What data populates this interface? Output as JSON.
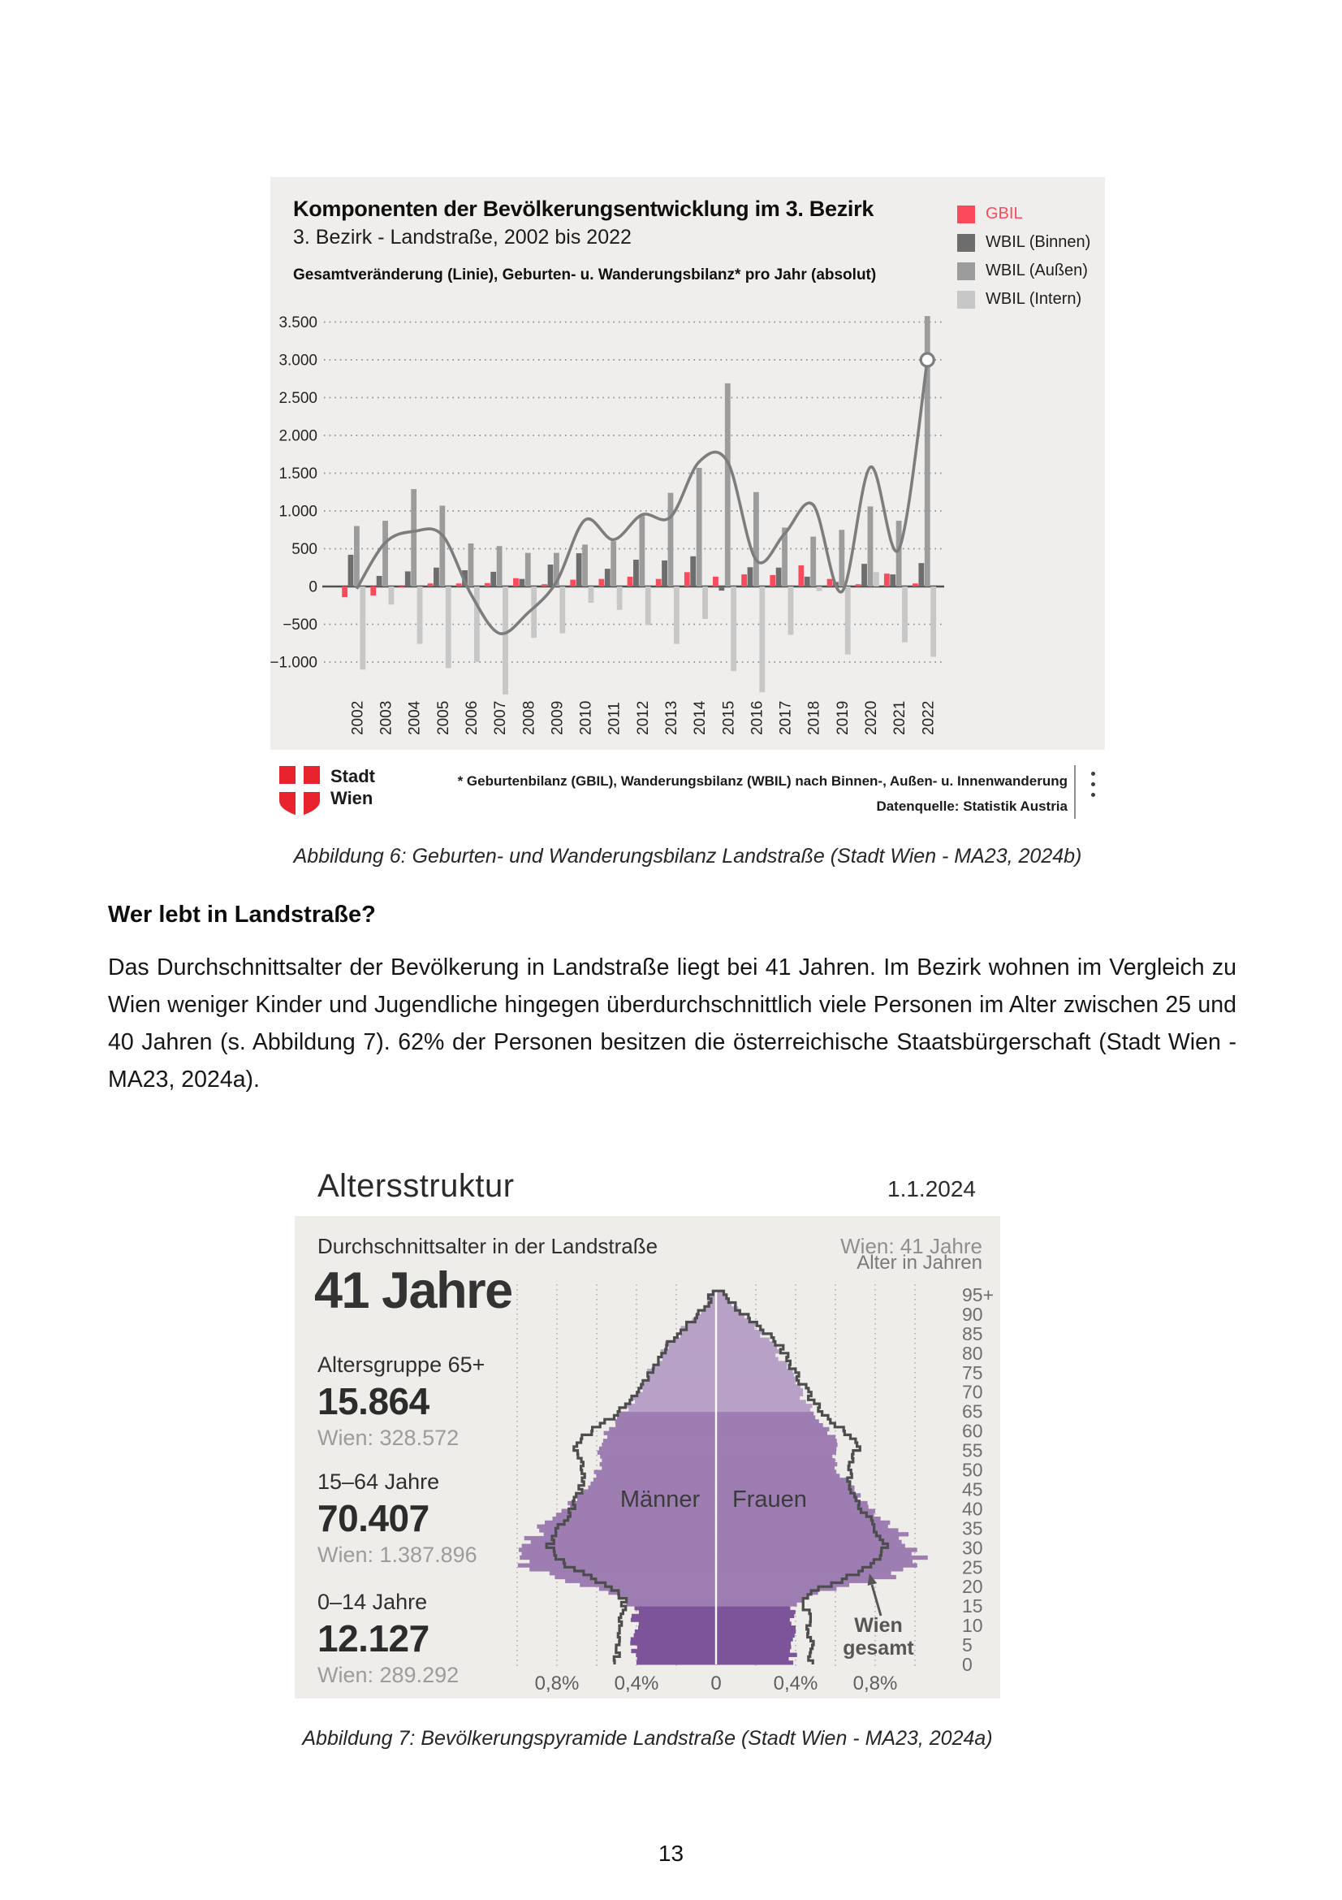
{
  "page_number": "13",
  "figure6": {
    "title": "Komponenten der Bevölkerungsentwicklung im 3. Bezirk",
    "subtitle": "3. Bezirk - Landstraße, 2002 bis 2022",
    "axis_note": "Gesamtveränderung (Linie), Geburten- u. Wanderungsbilanz* pro Jahr (absolut)",
    "legend": [
      {
        "label": "GBIL",
        "color": "#fb4a5c",
        "label_color": "#fb4a5c"
      },
      {
        "label": "WBIL (Binnen)",
        "color": "#6d6d6d",
        "label_color": "#1d1d1d"
      },
      {
        "label": "WBIL (Außen)",
        "color": "#9c9c9c",
        "label_color": "#1d1d1d"
      },
      {
        "label": "WBIL (Intern)",
        "color": "#c7c7c7",
        "label_color": "#1d1d1d"
      }
    ],
    "footnote_line1": "* Geburtenbilanz (GBIL), Wanderungsbilanz (WBIL) nach Binnen-, Außen- u. Innenwanderung",
    "footnote_line2": "Datenquelle: Statistik Austria",
    "logo_line1": "Stadt",
    "logo_line2": "Wien",
    "caption": "Abbildung 6: Geburten- und Wanderungsbilanz Landstraße (Stadt Wien - MA23, 2024b)"
  },
  "section": {
    "heading": "Wer lebt in Landstraße?",
    "paragraph": "Das Durchschnittsalter der Bevölkerung in Landstraße liegt bei 41 Jahren. Im Bezirk wohnen im Vergleich zu Wien weniger Kinder und Jugendliche hingegen überdurchschnittlich viele Personen im Alter zwischen 25 und 40 Jahren (s. Abbildung 7). 62% der Personen besitzen die österreichische Staatsbürgerschaft (Stadt Wien - MA23, 2024a)."
  },
  "figure7": {
    "title": "Altersstruktur",
    "date": "1.1.2024",
    "panel_label": "Durchschnittsalter in der Landstraße",
    "wien_average": "Wien: 41 Jahre",
    "big_value": "41 Jahre",
    "age_axis_label": "Alter in Jahren",
    "stats": [
      {
        "label": "Altersgruppe 65+",
        "value": "15.864",
        "wien": "Wien: 328.572"
      },
      {
        "label": "15–64 Jahre",
        "value": "70.407",
        "wien": "Wien: 1.387.896"
      },
      {
        "label": "0–14 Jahre",
        "value": "12.127",
        "wien": "Wien: 289.292"
      }
    ],
    "men_label": "Männer",
    "women_label": "Frauen",
    "wien_gesamt_line1": "Wien",
    "wien_gesamt_line2": "gesamt",
    "caption": "Abbildung 7: Bevölkerungspyramide Landstraße (Stadt Wien - MA23, 2024a)",
    "colors": {
      "band_0_14": "#7d5499",
      "band_15_64": "#9d7db2",
      "band_65plus": "#b8a1c7",
      "wien_outline": "#4d4d4d",
      "panel_bg": "#efedea"
    }
  },
  "chart_data": [
    {
      "type": "bar",
      "title": "Komponenten der Bevölkerungsentwicklung im 3. Bezirk",
      "ylabel": "Gesamtveränderung (Linie), Geburten- u. Wanderungsbilanz* pro Jahr (absolut)",
      "categories": [
        2002,
        2003,
        2004,
        2005,
        2006,
        2007,
        2008,
        2009,
        2010,
        2011,
        2012,
        2013,
        2014,
        2015,
        2016,
        2017,
        2018,
        2019,
        2020,
        2021,
        2022
      ],
      "series": [
        {
          "name": "GBIL",
          "color": "#fb4a5c",
          "values": [
            -140,
            -120,
            -15,
            40,
            40,
            45,
            110,
            30,
            90,
            100,
            130,
            100,
            190,
            130,
            160,
            150,
            280,
            100,
            30,
            170,
            40
          ]
        },
        {
          "name": "WBIL (Binnen)",
          "color": "#6d6d6d",
          "values": [
            420,
            140,
            200,
            250,
            215,
            195,
            100,
            290,
            440,
            235,
            355,
            345,
            400,
            -55,
            255,
            250,
            130,
            60,
            300,
            160,
            310
          ]
        },
        {
          "name": "WBIL (Außen)",
          "color": "#9c9c9c",
          "values": [
            800,
            870,
            1290,
            1070,
            570,
            535,
            445,
            445,
            555,
            600,
            950,
            1240,
            1570,
            2690,
            1250,
            780,
            660,
            750,
            1060,
            870,
            3580
          ]
        },
        {
          "name": "WBIL (Intern)",
          "color": "#c7c7c7",
          "values": [
            -1100,
            -240,
            -760,
            -1080,
            -1000,
            -1430,
            -680,
            -620,
            -215,
            -310,
            -510,
            -760,
            -430,
            -1120,
            -1400,
            -640,
            -60,
            -900,
            190,
            -740,
            -930
          ]
        }
      ],
      "line_series": {
        "name": "Gesamtveränderung",
        "color": "#7d7d7d",
        "values": [
          -30,
          580,
          730,
          680,
          -100,
          -620,
          -350,
          60,
          880,
          620,
          950,
          920,
          1650,
          1650,
          350,
          700,
          1080,
          -70,
          1580,
          490,
          3000
        ]
      },
      "ylim": [
        -1000,
        3600
      ],
      "yticks": [
        3500,
        3000,
        2500,
        2000,
        1500,
        1000,
        500,
        0,
        -500,
        -1000
      ],
      "grid": "dotted-horizontal",
      "legend_position": "right-top",
      "values_estimated": true
    },
    {
      "type": "pyramid",
      "title": "Altersstruktur",
      "unit": "percent of population per 1-year age group",
      "x_ticks": [
        "0,8%",
        "0,4%",
        "0",
        "0,4%",
        "0,8%"
      ],
      "x_gridline_step_pct": 0.2,
      "age_ticks": [
        "0",
        "5",
        "10",
        "15",
        "20",
        "25",
        "30",
        "35",
        "40",
        "45",
        "50",
        "55",
        "60",
        "65",
        "70",
        "75",
        "80",
        "85",
        "90",
        "95+"
      ],
      "district_men_profile": [
        [
          0,
          0.4
        ],
        [
          5,
          0.41
        ],
        [
          10,
          0.41
        ],
        [
          14,
          0.41
        ],
        [
          16,
          0.45
        ],
        [
          18,
          0.54
        ],
        [
          20,
          0.68
        ],
        [
          22,
          0.84
        ],
        [
          25,
          0.97
        ],
        [
          28,
          1.0
        ],
        [
          30,
          0.98
        ],
        [
          33,
          0.91
        ],
        [
          36,
          0.83
        ],
        [
          40,
          0.75
        ],
        [
          44,
          0.68
        ],
        [
          48,
          0.61
        ],
        [
          52,
          0.58
        ],
        [
          56,
          0.58
        ],
        [
          60,
          0.54
        ],
        [
          63,
          0.48
        ],
        [
          65,
          0.45
        ],
        [
          68,
          0.41
        ],
        [
          71,
          0.38
        ],
        [
          74,
          0.34
        ],
        [
          77,
          0.3
        ],
        [
          80,
          0.27
        ],
        [
          83,
          0.22
        ],
        [
          86,
          0.16
        ],
        [
          89,
          0.1
        ],
        [
          92,
          0.05
        ],
        [
          95,
          0.02
        ]
      ],
      "district_women_profile": [
        [
          0,
          0.385
        ],
        [
          5,
          0.39
        ],
        [
          10,
          0.39
        ],
        [
          14,
          0.39
        ],
        [
          16,
          0.43
        ],
        [
          18,
          0.52
        ],
        [
          20,
          0.68
        ],
        [
          22,
          0.87
        ],
        [
          25,
          1.0
        ],
        [
          28,
          1.03
        ],
        [
          30,
          1.0
        ],
        [
          33,
          0.93
        ],
        [
          36,
          0.85
        ],
        [
          40,
          0.76
        ],
        [
          44,
          0.69
        ],
        [
          48,
          0.63
        ],
        [
          52,
          0.6
        ],
        [
          56,
          0.6
        ],
        [
          60,
          0.56
        ],
        [
          63,
          0.51
        ],
        [
          65,
          0.48
        ],
        [
          68,
          0.44
        ],
        [
          71,
          0.41
        ],
        [
          74,
          0.38
        ],
        [
          77,
          0.34
        ],
        [
          80,
          0.31
        ],
        [
          83,
          0.26
        ],
        [
          86,
          0.21
        ],
        [
          89,
          0.15
        ],
        [
          92,
          0.08
        ],
        [
          95,
          0.04
        ]
      ],
      "wien_men_profile": [
        [
          0,
          0.5
        ],
        [
          5,
          0.5
        ],
        [
          10,
          0.49
        ],
        [
          14,
          0.47
        ],
        [
          16,
          0.46
        ],
        [
          18,
          0.49
        ],
        [
          20,
          0.56
        ],
        [
          22,
          0.64
        ],
        [
          25,
          0.75
        ],
        [
          28,
          0.82
        ],
        [
          30,
          0.84
        ],
        [
          33,
          0.81
        ],
        [
          36,
          0.77
        ],
        [
          40,
          0.72
        ],
        [
          44,
          0.68
        ],
        [
          48,
          0.66
        ],
        [
          52,
          0.68
        ],
        [
          55,
          0.7
        ],
        [
          58,
          0.66
        ],
        [
          61,
          0.58
        ],
        [
          64,
          0.5
        ],
        [
          67,
          0.44
        ],
        [
          70,
          0.39
        ],
        [
          73,
          0.35
        ],
        [
          76,
          0.31
        ],
        [
          79,
          0.28
        ],
        [
          82,
          0.24
        ],
        [
          85,
          0.18
        ],
        [
          88,
          0.12
        ],
        [
          91,
          0.06
        ],
        [
          94,
          0.03
        ],
        [
          95,
          0.02
        ]
      ],
      "wien_women_profile": [
        [
          0,
          0.48
        ],
        [
          5,
          0.48
        ],
        [
          10,
          0.47
        ],
        [
          14,
          0.45
        ],
        [
          16,
          0.45
        ],
        [
          18,
          0.48
        ],
        [
          20,
          0.57
        ],
        [
          22,
          0.67
        ],
        [
          25,
          0.78
        ],
        [
          28,
          0.84
        ],
        [
          30,
          0.85
        ],
        [
          33,
          0.82
        ],
        [
          36,
          0.78
        ],
        [
          40,
          0.73
        ],
        [
          44,
          0.69
        ],
        [
          48,
          0.67
        ],
        [
          52,
          0.69
        ],
        [
          55,
          0.71
        ],
        [
          58,
          0.68
        ],
        [
          61,
          0.61
        ],
        [
          64,
          0.54
        ],
        [
          67,
          0.49
        ],
        [
          70,
          0.45
        ],
        [
          73,
          0.42
        ],
        [
          76,
          0.38
        ],
        [
          79,
          0.35
        ],
        [
          82,
          0.31
        ],
        [
          85,
          0.25
        ],
        [
          88,
          0.18
        ],
        [
          91,
          0.11
        ],
        [
          94,
          0.06
        ],
        [
          95,
          0.05
        ]
      ],
      "age_bands": [
        {
          "range": "0-14",
          "color": "#7d5499"
        },
        {
          "range": "15-64",
          "color": "#9d7db2"
        },
        {
          "range": "65+",
          "color": "#b8a1c7"
        }
      ],
      "values_estimated": true
    }
  ]
}
